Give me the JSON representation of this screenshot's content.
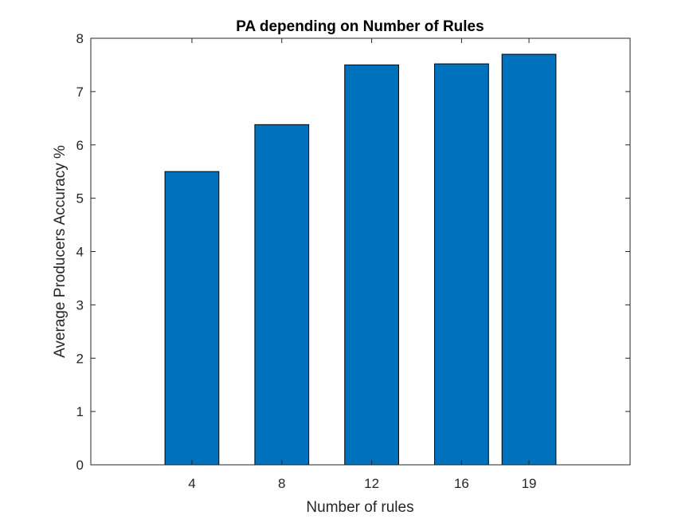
{
  "chart_data": {
    "type": "bar",
    "title": "PA depending on Number of Rules",
    "xlabel": "Number of rules",
    "ylabel": "Average Producers Accuracy %",
    "x": [
      4,
      8,
      12,
      16,
      19
    ],
    "values": [
      5.5,
      6.38,
      7.5,
      7.52,
      7.7
    ],
    "xlim": [
      -0.5,
      23.5
    ],
    "ylim": [
      0,
      8
    ],
    "yticks": [
      0,
      1,
      2,
      3,
      4,
      5,
      6,
      7,
      8
    ],
    "bar_width": 2.4,
    "bar_color": "#0072BD",
    "grid": false
  }
}
